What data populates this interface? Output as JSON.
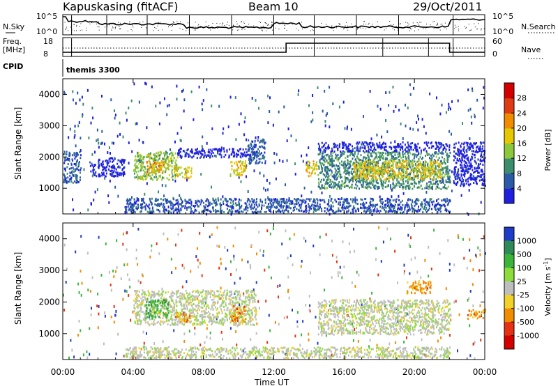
{
  "header": {
    "station": "Kapuskasing (fitACF)",
    "beam": "Beam 10",
    "date": "29/Oct/2011"
  },
  "top_panels": {
    "nsky_label": "N.Sky",
    "nsky_ticks": [
      "10^5",
      "10^0"
    ],
    "nsearch_label": "N.Search",
    "nsearch_ticks": [
      "10^5",
      "10^0"
    ],
    "freq_label": "Freq.",
    "freq_unit": "[MHz]",
    "freq_ticks": [
      "18",
      "8"
    ],
    "nave_label": "Nave",
    "nave_ticks": [
      "60",
      "0"
    ],
    "cpid_label": "CPID",
    "cpid_value": "themis 3300"
  },
  "chart_data": [
    {
      "type": "heatmap",
      "name": "power",
      "ylabel": "Slant Range [km]",
      "ylim": [
        180,
        4500
      ],
      "y_ticks": [
        1000,
        2000,
        3000,
        4000
      ],
      "colorbar_label": "Power [dB]",
      "colorbar_ticks": [
        "4",
        "8",
        "12",
        "16",
        "20",
        "24",
        "28"
      ],
      "colorbar_colors": [
        "#1f1fe0",
        "#2a5aa8",
        "#3c8c6e",
        "#8cc83c",
        "#e6c800",
        "#f08c00",
        "#e03c14",
        "#d40000"
      ],
      "patches": [
        {
          "x": [
            0.0,
            1.0
          ],
          "y": [
            1200,
            2200
          ],
          "level": 1
        },
        {
          "x": [
            1.5,
            3.5
          ],
          "y": [
            1400,
            2000
          ],
          "level": 0
        },
        {
          "x": [
            4.0,
            6.5
          ],
          "y": [
            1300,
            2200
          ],
          "level": 3
        },
        {
          "x": [
            4.7,
            5.8
          ],
          "y": [
            1500,
            1900
          ],
          "level": 5
        },
        {
          "x": [
            6.3,
            7.3
          ],
          "y": [
            1350,
            1700
          ],
          "level": 4
        },
        {
          "x": [
            6.5,
            11.0
          ],
          "y": [
            2000,
            2300
          ],
          "level": 0
        },
        {
          "x": [
            9.5,
            10.4
          ],
          "y": [
            1400,
            1900
          ],
          "level": 4
        },
        {
          "x": [
            10.5,
            11.5
          ],
          "y": [
            1800,
            2600
          ],
          "level": 1
        },
        {
          "x": [
            13.8,
            14.5
          ],
          "y": [
            1400,
            1900
          ],
          "level": 4
        },
        {
          "x": [
            14.5,
            22.0
          ],
          "y": [
            1000,
            2200
          ],
          "level": 2
        },
        {
          "x": [
            16.5,
            21.5
          ],
          "y": [
            1300,
            1900
          ],
          "level": 4
        },
        {
          "x": [
            14.5,
            22.0
          ],
          "y": [
            2200,
            2500
          ],
          "level": 0
        },
        {
          "x": [
            22.2,
            24.0
          ],
          "y": [
            1100,
            2500
          ],
          "level": 0
        },
        {
          "x": [
            3.5,
            22.0
          ],
          "y": [
            250,
            700
          ],
          "level": 1
        }
      ]
    },
    {
      "type": "heatmap",
      "name": "velocity",
      "ylabel": "Slant Range [km]",
      "ylim": [
        180,
        4500
      ],
      "y_ticks": [
        1000,
        2000,
        3000,
        4000
      ],
      "colorbar_label": "Velocity [m s",
      "colorbar_exp": "-1",
      "colorbar_unit_close": "]",
      "colorbar_ticks": [
        "1000",
        "500",
        "100",
        "25",
        "-25",
        "-100",
        "-500",
        "-1000"
      ],
      "colorbar_colors": [
        "#1f3cc8",
        "#2e8b57",
        "#3cb43c",
        "#8cdc3c",
        "#bebebe",
        "#f0d228",
        "#f08c00",
        "#e63214",
        "#d40000"
      ],
      "patches": [
        {
          "x": [
            4.0,
            11.0
          ],
          "y": [
            1300,
            2400
          ],
          "level": 4
        },
        {
          "x": [
            4.7,
            6.0
          ],
          "y": [
            1500,
            2100
          ],
          "level": 2
        },
        {
          "x": [
            6.3,
            7.2
          ],
          "y": [
            1400,
            1700
          ],
          "level": 6
        },
        {
          "x": [
            9.5,
            10.4
          ],
          "y": [
            1400,
            1900
          ],
          "level": 6
        },
        {
          "x": [
            14.5,
            22.0
          ],
          "y": [
            1000,
            2100
          ],
          "level": 4
        },
        {
          "x": [
            23.0,
            24.0
          ],
          "y": [
            1500,
            1800
          ],
          "level": 6
        },
        {
          "x": [
            3.5,
            22.0
          ],
          "y": [
            250,
            600
          ],
          "level": 4
        },
        {
          "x": [
            19.5,
            21.0
          ],
          "y": [
            2300,
            2700
          ],
          "level": 6
        }
      ]
    }
  ],
  "x_axis": {
    "xlim": [
      0,
      24
    ],
    "tick_labels": [
      "00:00",
      "04:00",
      "08:00",
      "12:00",
      "16:00",
      "20:00",
      "00:00"
    ],
    "tick_values": [
      0,
      4,
      8,
      12,
      16,
      20,
      24
    ],
    "xlabel": "Time UT"
  }
}
